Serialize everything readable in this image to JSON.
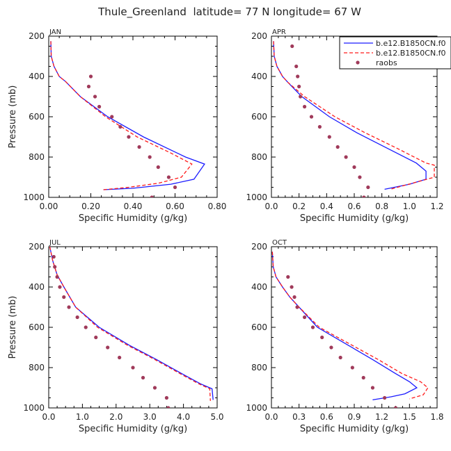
{
  "figure_title": "Thule_Greenland  latitude= 77 N longitude= 67 W",
  "legend": {
    "placement": "top-right of APR panel",
    "entries": [
      {
        "label": "b.e12.B1850CN.f0",
        "color": "#1a1aff",
        "style": "solid"
      },
      {
        "label": "b.e12.B1850CN.f0",
        "color": "#ff1a1a",
        "style": "dashed"
      },
      {
        "label": "raobs",
        "color": "#a03a5a",
        "style": "dot"
      }
    ]
  },
  "chart_data": [
    {
      "type": "line",
      "panel": "JAN",
      "xlabel": "Specific Humidity (g/kg)",
      "ylabel": "Pressure (mb)",
      "xlim": [
        0,
        0.8
      ],
      "ylim": [
        1000,
        200
      ],
      "y_inverted": true,
      "xticks": [
        0,
        0.2,
        0.4,
        0.6,
        0.8
      ],
      "xtick_labels": [
        "0.00",
        "0.20",
        "0.40",
        "0.60",
        "0.80"
      ],
      "yticks": [
        200,
        400,
        600,
        800,
        1000
      ],
      "ytick_labels": [
        "200",
        "400",
        "600",
        "800",
        "1000"
      ],
      "series": [
        {
          "legend_index": 0,
          "color": "#1a1aff",
          "style": "solid",
          "points": [
            [
              0.01,
              225
            ],
            [
              0.012,
              300
            ],
            [
              0.025,
              350
            ],
            [
              0.05,
              400
            ],
            [
              0.08,
              425
            ],
            [
              0.15,
              500
            ],
            [
              0.28,
              600
            ],
            [
              0.45,
              700
            ],
            [
              0.65,
              800
            ],
            [
              0.74,
              835
            ],
            [
              0.69,
              910
            ],
            [
              0.58,
              935
            ],
            [
              0.4,
              955
            ],
            [
              0.26,
              962
            ]
          ]
        },
        {
          "legend_index": 1,
          "color": "#ff1a1a",
          "style": "dashed",
          "points": [
            [
              0.01,
              225
            ],
            [
              0.012,
              300
            ],
            [
              0.025,
              350
            ],
            [
              0.05,
              400
            ],
            [
              0.08,
              425
            ],
            [
              0.15,
              500
            ],
            [
              0.27,
              600
            ],
            [
              0.42,
              700
            ],
            [
              0.58,
              780
            ],
            [
              0.68,
              835
            ],
            [
              0.63,
              900
            ],
            [
              0.52,
              930
            ],
            [
              0.38,
              950
            ],
            [
              0.26,
              962
            ]
          ]
        },
        {
          "legend_index": 2,
          "color": "#a03a5a",
          "style": "dot",
          "points": [
            [
              0.2,
              400
            ],
            [
              0.19,
              450
            ],
            [
              0.22,
              500
            ],
            [
              0.24,
              550
            ],
            [
              0.3,
              600
            ],
            [
              0.34,
              650
            ],
            [
              0.38,
              700
            ],
            [
              0.43,
              750
            ],
            [
              0.48,
              800
            ],
            [
              0.52,
              850
            ],
            [
              0.57,
              900
            ],
            [
              0.6,
              950
            ],
            [
              0.49,
              1000
            ]
          ]
        }
      ]
    },
    {
      "type": "line",
      "panel": "APR",
      "xlabel": "Specific Humidity (g/kg)",
      "ylabel": "",
      "xlim": [
        0,
        1.2
      ],
      "ylim": [
        1000,
        200
      ],
      "y_inverted": true,
      "xticks": [
        0,
        0.2,
        0.4,
        0.6,
        0.8,
        1.0,
        1.2
      ],
      "xtick_labels": [
        "0.0",
        "0.2",
        "0.4",
        "0.6",
        "0.8",
        "1.0",
        "1.2"
      ],
      "yticks": [
        200,
        400,
        600,
        800,
        1000
      ],
      "ytick_labels": [
        "200",
        "400",
        "600",
        "800",
        "1000"
      ],
      "series": [
        {
          "legend_index": 0,
          "color": "#1a1aff",
          "style": "solid",
          "points": [
            [
              0.015,
              225
            ],
            [
              0.02,
              300
            ],
            [
              0.04,
              350
            ],
            [
              0.08,
              400
            ],
            [
              0.12,
              430
            ],
            [
              0.22,
              500
            ],
            [
              0.42,
              600
            ],
            [
              0.62,
              680
            ],
            [
              0.85,
              760
            ],
            [
              1.05,
              830
            ],
            [
              1.12,
              870
            ],
            [
              1.12,
              910
            ],
            [
              1.0,
              935
            ],
            [
              0.82,
              960
            ]
          ]
        },
        {
          "legend_index": 1,
          "color": "#ff1a1a",
          "style": "dashed",
          "points": [
            [
              0.015,
              225
            ],
            [
              0.02,
              300
            ],
            [
              0.04,
              350
            ],
            [
              0.08,
              400
            ],
            [
              0.12,
              430
            ],
            [
              0.24,
              500
            ],
            [
              0.46,
              600
            ],
            [
              0.68,
              680
            ],
            [
              0.92,
              760
            ],
            [
              1.12,
              830
            ],
            [
              1.18,
              840
            ],
            [
              1.18,
              900
            ],
            [
              1.02,
              930
            ],
            [
              0.86,
              960
            ]
          ]
        },
        {
          "legend_index": 2,
          "color": "#a03a5a",
          "style": "dot",
          "points": [
            [
              0.15,
              250
            ],
            [
              0.18,
              350
            ],
            [
              0.19,
              400
            ],
            [
              0.2,
              450
            ],
            [
              0.21,
              500
            ],
            [
              0.24,
              550
            ],
            [
              0.29,
              600
            ],
            [
              0.35,
              650
            ],
            [
              0.42,
              700
            ],
            [
              0.48,
              750
            ],
            [
              0.54,
              800
            ],
            [
              0.6,
              850
            ],
            [
              0.64,
              900
            ],
            [
              0.7,
              950
            ],
            [
              0.67,
              1000
            ]
          ]
        }
      ]
    },
    {
      "type": "line",
      "panel": "JUL",
      "xlabel": "Specific Humidity (g/kg)",
      "ylabel": "Pressure (mb)",
      "xlim": [
        0,
        5.0
      ],
      "ylim": [
        1000,
        200
      ],
      "y_inverted": true,
      "xticks": [
        0,
        1,
        2,
        3,
        4,
        5
      ],
      "xtick_labels": [
        "0.0",
        "1.0",
        "2.0",
        "3.0",
        "4.0",
        "5.0"
      ],
      "yticks": [
        200,
        400,
        600,
        800,
        1000
      ],
      "ytick_labels": [
        "200",
        "400",
        "600",
        "800",
        "1000"
      ],
      "series": [
        {
          "legend_index": 0,
          "color": "#1a1aff",
          "style": "solid",
          "points": [
            [
              0.03,
              200
            ],
            [
              0.12,
              270
            ],
            [
              0.25,
              340
            ],
            [
              0.45,
              400
            ],
            [
              0.8,
              500
            ],
            [
              1.5,
              600
            ],
            [
              2.4,
              690
            ],
            [
              3.2,
              760
            ],
            [
              3.95,
              830
            ],
            [
              4.5,
              880
            ],
            [
              4.85,
              905
            ],
            [
              4.88,
              960
            ]
          ]
        },
        {
          "legend_index": 1,
          "color": "#ff1a1a",
          "style": "dashed",
          "points": [
            [
              0.03,
              200
            ],
            [
              0.12,
              270
            ],
            [
              0.25,
              340
            ],
            [
              0.45,
              400
            ],
            [
              0.8,
              500
            ],
            [
              1.45,
              600
            ],
            [
              2.35,
              690
            ],
            [
              3.15,
              760
            ],
            [
              3.9,
              830
            ],
            [
              4.45,
              880
            ],
            [
              4.78,
              905
            ],
            [
              4.8,
              965
            ]
          ]
        },
        {
          "legend_index": 2,
          "color": "#a03a5a",
          "style": "dot",
          "points": [
            [
              0.15,
              250
            ],
            [
              0.18,
              300
            ],
            [
              0.25,
              350
            ],
            [
              0.33,
              400
            ],
            [
              0.45,
              450
            ],
            [
              0.6,
              500
            ],
            [
              0.85,
              550
            ],
            [
              1.1,
              600
            ],
            [
              1.4,
              650
            ],
            [
              1.75,
              700
            ],
            [
              2.1,
              750
            ],
            [
              2.5,
              800
            ],
            [
              2.8,
              850
            ],
            [
              3.15,
              900
            ],
            [
              3.5,
              950
            ],
            [
              3.55,
              1000
            ]
          ]
        }
      ]
    },
    {
      "type": "line",
      "panel": "OCT",
      "xlabel": "Specific Humidity (g/kg)",
      "ylabel": "",
      "xlim": [
        0,
        1.8
      ],
      "ylim": [
        1000,
        200
      ],
      "y_inverted": true,
      "xticks": [
        0,
        0.3,
        0.6,
        0.9,
        1.2,
        1.5,
        1.8
      ],
      "xtick_labels": [
        "0.0",
        "0.3",
        "0.6",
        "0.9",
        "1.2",
        "1.5",
        "1.8"
      ],
      "yticks": [
        200,
        400,
        600,
        800,
        1000
      ],
      "ytick_labels": [
        "200",
        "400",
        "600",
        "800",
        "1000"
      ],
      "series": [
        {
          "legend_index": 0,
          "color": "#1a1aff",
          "style": "solid",
          "points": [
            [
              0.01,
              225
            ],
            [
              0.02,
              300
            ],
            [
              0.05,
              350
            ],
            [
              0.12,
              400
            ],
            [
              0.2,
              450
            ],
            [
              0.3,
              500
            ],
            [
              0.5,
              600
            ],
            [
              0.8,
              680
            ],
            [
              1.1,
              760
            ],
            [
              1.35,
              830
            ],
            [
              1.5,
              870
            ],
            [
              1.58,
              900
            ],
            [
              1.45,
              930
            ],
            [
              1.3,
              945
            ],
            [
              1.1,
              960
            ]
          ]
        },
        {
          "legend_index": 1,
          "color": "#ff1a1a",
          "style": "dashed",
          "points": [
            [
              0.01,
              225
            ],
            [
              0.02,
              300
            ],
            [
              0.05,
              350
            ],
            [
              0.12,
              400
            ],
            [
              0.2,
              450
            ],
            [
              0.3,
              500
            ],
            [
              0.52,
              600
            ],
            [
              0.84,
              680
            ],
            [
              1.16,
              760
            ],
            [
              1.42,
              830
            ],
            [
              1.62,
              870
            ],
            [
              1.7,
              900
            ],
            [
              1.65,
              935
            ],
            [
              1.5,
              955
            ]
          ]
        },
        {
          "legend_index": 2,
          "color": "#a03a5a",
          "style": "dot",
          "points": [
            [
              0.18,
              350
            ],
            [
              0.22,
              400
            ],
            [
              0.25,
              450
            ],
            [
              0.28,
              500
            ],
            [
              0.36,
              550
            ],
            [
              0.45,
              600
            ],
            [
              0.55,
              650
            ],
            [
              0.65,
              700
            ],
            [
              0.75,
              750
            ],
            [
              0.88,
              800
            ],
            [
              1.0,
              850
            ],
            [
              1.1,
              900
            ],
            [
              1.23,
              950
            ],
            [
              1.35,
              1000
            ]
          ]
        }
      ]
    }
  ]
}
